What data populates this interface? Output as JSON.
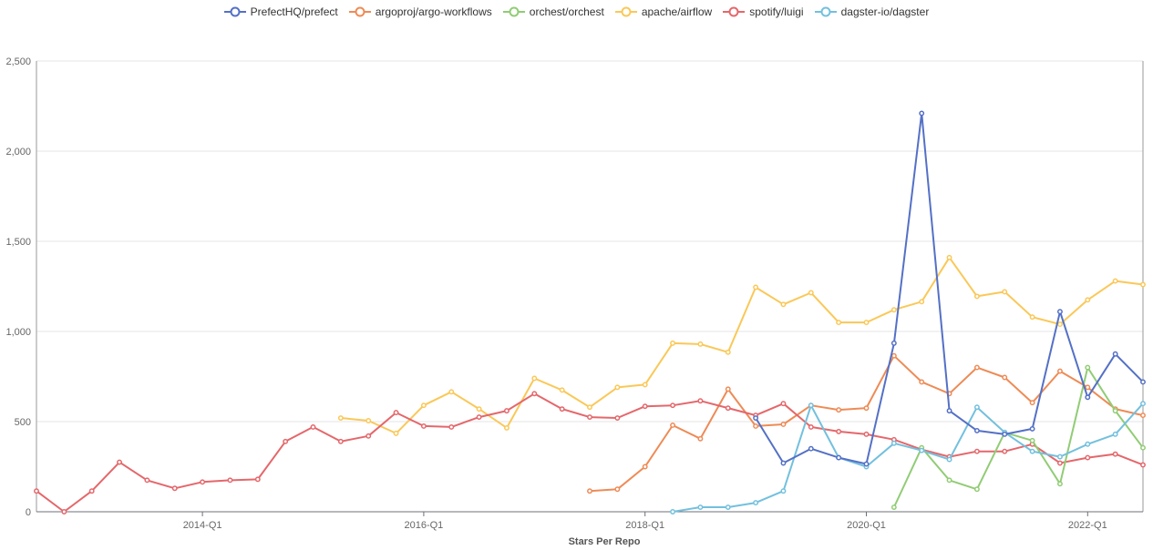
{
  "chart_data": {
    "type": "line",
    "title": "",
    "xlabel": "Stars Per Repo",
    "ylabel": "",
    "ylim": [
      0,
      2500
    ],
    "yticks": [
      "0",
      "500",
      "1,000",
      "1,500",
      "2,000",
      "2,500"
    ],
    "ytick_values": [
      0,
      500,
      1000,
      1500,
      2000,
      2500
    ],
    "xticks": [
      "2014-Q1",
      "2016-Q1",
      "2018-Q1",
      "2020-Q1",
      "2022-Q1"
    ],
    "legend_position": "top-center",
    "grid": true,
    "categories": [
      "2012-Q3",
      "2012-Q4",
      "2013-Q1",
      "2013-Q2",
      "2013-Q3",
      "2013-Q4",
      "2014-Q1",
      "2014-Q2",
      "2014-Q3",
      "2014-Q4",
      "2015-Q1",
      "2015-Q2",
      "2015-Q3",
      "2015-Q4",
      "2016-Q1",
      "2016-Q2",
      "2016-Q3",
      "2016-Q4",
      "2017-Q1",
      "2017-Q2",
      "2017-Q3",
      "2017-Q4",
      "2018-Q1",
      "2018-Q2",
      "2018-Q3",
      "2018-Q4",
      "2019-Q1",
      "2019-Q2",
      "2019-Q3",
      "2019-Q4",
      "2020-Q1",
      "2020-Q2",
      "2020-Q3",
      "2020-Q4",
      "2021-Q1",
      "2021-Q2",
      "2021-Q3",
      "2021-Q4",
      "2022-Q1",
      "2022-Q2",
      "2022-Q3"
    ],
    "series": [
      {
        "name": "PrefectHQ/prefect",
        "color": "#5470c6",
        "values": [
          null,
          null,
          null,
          null,
          null,
          null,
          null,
          null,
          null,
          null,
          null,
          null,
          null,
          null,
          null,
          null,
          null,
          null,
          null,
          null,
          null,
          null,
          null,
          null,
          null,
          null,
          520,
          270,
          350,
          300,
          265,
          935,
          2210,
          560,
          450,
          430,
          460,
          1110,
          635,
          875,
          720
        ]
      },
      {
        "name": "argoproj/argo-workflows",
        "color": "#ee8b56",
        "values": [
          null,
          null,
          null,
          null,
          null,
          null,
          null,
          null,
          null,
          null,
          null,
          null,
          null,
          null,
          null,
          null,
          null,
          null,
          null,
          null,
          115,
          125,
          250,
          480,
          405,
          680,
          475,
          485,
          590,
          565,
          575,
          865,
          720,
          655,
          800,
          745,
          605,
          780,
          690,
          570,
          535
        ]
      },
      {
        "name": "orchest/orchest",
        "color": "#91cc75",
        "values": [
          null,
          null,
          null,
          null,
          null,
          null,
          null,
          null,
          null,
          null,
          null,
          null,
          null,
          null,
          null,
          null,
          null,
          null,
          null,
          null,
          null,
          null,
          null,
          null,
          null,
          null,
          null,
          null,
          null,
          null,
          null,
          25,
          355,
          175,
          125,
          440,
          395,
          155,
          800,
          560,
          355
        ]
      },
      {
        "name": "apache/airflow",
        "color": "#fac858",
        "values": [
          null,
          null,
          null,
          null,
          null,
          null,
          null,
          null,
          null,
          null,
          null,
          520,
          505,
          435,
          590,
          665,
          570,
          465,
          740,
          675,
          580,
          690,
          705,
          935,
          930,
          885,
          1245,
          1150,
          1215,
          1050,
          1050,
          1120,
          1165,
          1410,
          1195,
          1220,
          1080,
          1040,
          1175,
          1280,
          1260
        ]
      },
      {
        "name": "spotify/luigi",
        "color": "#e4676b",
        "values": [
          115,
          0,
          115,
          275,
          175,
          130,
          165,
          175,
          180,
          390,
          470,
          390,
          420,
          550,
          475,
          470,
          525,
          560,
          655,
          570,
          525,
          520,
          585,
          590,
          615,
          575,
          535,
          600,
          470,
          445,
          430,
          400,
          345,
          305,
          335,
          335,
          375,
          270,
          300,
          320,
          260
        ]
      },
      {
        "name": "dagster-io/dagster",
        "color": "#73c0de",
        "values": [
          null,
          null,
          null,
          null,
          null,
          null,
          null,
          null,
          null,
          null,
          null,
          null,
          null,
          null,
          null,
          null,
          null,
          null,
          null,
          null,
          null,
          null,
          null,
          0,
          25,
          25,
          50,
          115,
          590,
          300,
          250,
          380,
          340,
          290,
          580,
          440,
          335,
          305,
          375,
          430,
          600
        ]
      }
    ]
  }
}
